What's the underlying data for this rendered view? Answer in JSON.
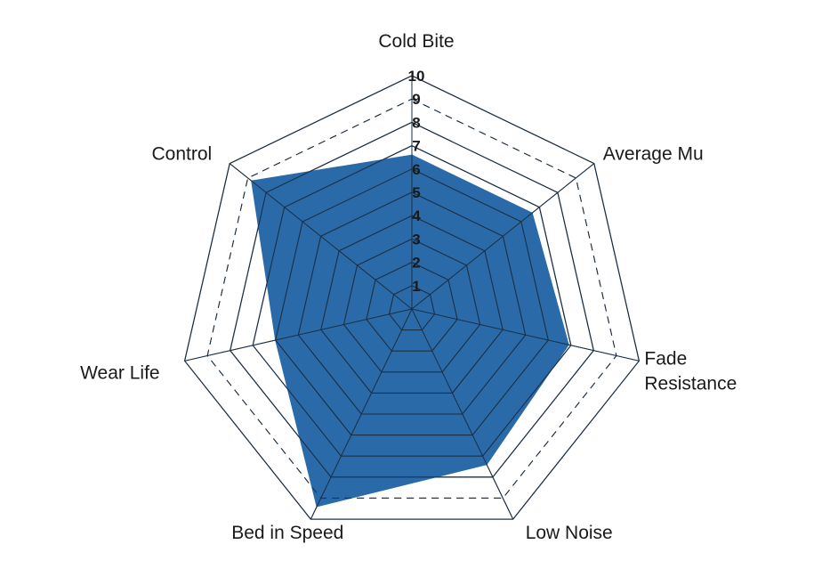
{
  "chart_data": {
    "type": "radar",
    "title": "",
    "axes": [
      "Cold Bite",
      "Average Mu",
      "Fade Resistance",
      "Low Noise",
      "Bed in Speed",
      "Wear Life",
      "Control"
    ],
    "axis_label_lines": [
      [
        "Cold Bite"
      ],
      [
        "Average Mu"
      ],
      [
        "Fade",
        "Resistance"
      ],
      [
        "Low Noise"
      ],
      [
        "Bed in Speed"
      ],
      [
        "Wear Life"
      ],
      [
        "Control"
      ]
    ],
    "range": [
      0,
      10
    ],
    "tick_labels": [
      "1",
      "2",
      "3",
      "4",
      "5",
      "6",
      "7",
      "8",
      "9",
      "10"
    ],
    "series": [
      {
        "values": [
          6.6,
          6.6,
          6.9,
          7.4,
          9.4,
          6.0,
          8.8
        ],
        "color": "#2a6aa8"
      }
    ],
    "grid": {
      "solid_levels": [
        1,
        2,
        3,
        4,
        5,
        6,
        7,
        8,
        10
      ],
      "dashed_levels": [
        9
      ],
      "spokes": true
    }
  }
}
